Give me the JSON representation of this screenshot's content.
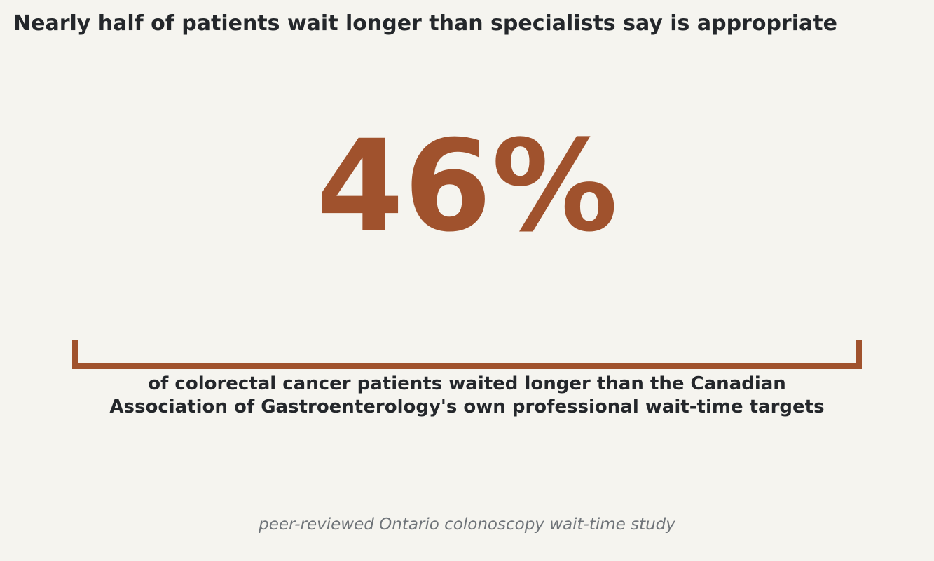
{
  "title": "Nearly half of patients wait longer than specialists say is appropriate",
  "stat": {
    "value": "46%",
    "color": "#a0522d"
  },
  "description": {
    "line1": "of colorectal cancer patients waited longer than the Canadian",
    "line2": "Association of Gastroenterology's own professional wait-time targets"
  },
  "source": "peer-reviewed Ontario colonoscopy wait-time study",
  "colors": {
    "background": "#f5f4ef",
    "text": "#24272b",
    "accent": "#a0522d",
    "muted": "#6f7479"
  }
}
